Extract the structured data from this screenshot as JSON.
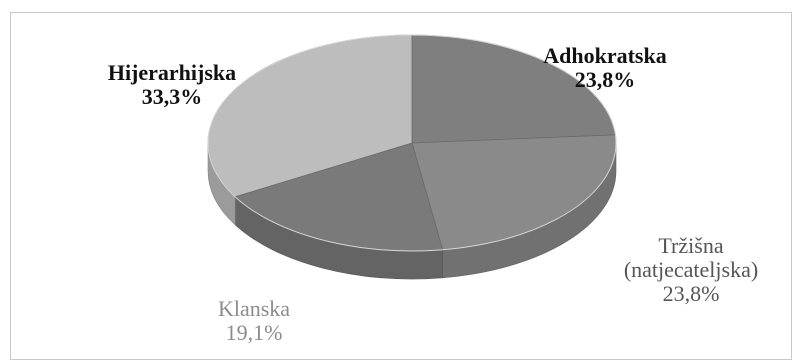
{
  "chart_data": {
    "type": "pie",
    "style": "3d",
    "title": "",
    "slices": [
      {
        "label": "Adhokratska",
        "value": 23.8,
        "value_label": "23,8%",
        "color": "#7f7f7f",
        "label_color": "#111111",
        "label_bold": true
      },
      {
        "label": "Tržišna (natjecateljska)",
        "label_lines": [
          "Tržišna",
          "(natjecateljska)"
        ],
        "value": 23.8,
        "value_label": "23,8%",
        "color": "#8a8a8a",
        "label_color": "#555555",
        "label_bold": false
      },
      {
        "label": "Klanska",
        "value": 19.1,
        "value_label": "19,1%",
        "color": "#7a7a7a",
        "label_color": "#8c8c8c",
        "label_bold": false
      },
      {
        "label": "Hijerarhijska",
        "value": 33.3,
        "value_label": "33,3%",
        "color": "#bdbdbd",
        "label_color": "#111111",
        "label_bold": true
      }
    ],
    "legend": "none"
  }
}
